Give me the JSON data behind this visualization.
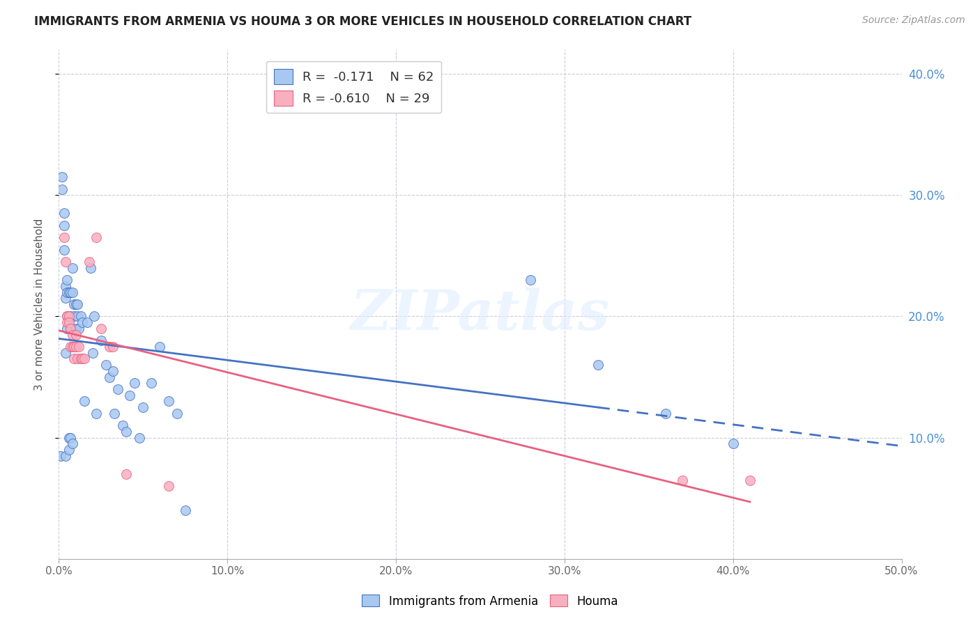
{
  "title": "IMMIGRANTS FROM ARMENIA VS HOUMA 3 OR MORE VEHICLES IN HOUSEHOLD CORRELATION CHART",
  "source": "Source: ZipAtlas.com",
  "ylabel": "3 or more Vehicles in Household",
  "xlim": [
    0.0,
    0.5
  ],
  "ylim": [
    0.0,
    0.42
  ],
  "xticks": [
    0.0,
    0.1,
    0.2,
    0.3,
    0.4,
    0.5
  ],
  "yticks_right": [
    0.1,
    0.2,
    0.3,
    0.4
  ],
  "ytick_labels_right": [
    "10.0%",
    "20.0%",
    "30.0%",
    "40.0%"
  ],
  "xtick_labels": [
    "0.0%",
    "10.0%",
    "20.0%",
    "30.0%",
    "40.0%",
    "50.0%"
  ],
  "armenia_color": "#a8c8f0",
  "houma_color": "#f8b0c0",
  "trendline_armenia_color": "#4472c4",
  "trendline_houma_color": "#e86080",
  "watermark_text": "ZIPatlas",
  "background_color": "#ffffff",
  "grid_color": "#ccccdd",
  "armenia_x": [
    0.001,
    0.002,
    0.002,
    0.003,
    0.003,
    0.003,
    0.004,
    0.004,
    0.004,
    0.004,
    0.005,
    0.005,
    0.005,
    0.005,
    0.006,
    0.006,
    0.006,
    0.006,
    0.006,
    0.007,
    0.007,
    0.007,
    0.007,
    0.008,
    0.008,
    0.008,
    0.009,
    0.009,
    0.01,
    0.01,
    0.011,
    0.011,
    0.012,
    0.013,
    0.014,
    0.015,
    0.017,
    0.019,
    0.02,
    0.021,
    0.022,
    0.025,
    0.028,
    0.03,
    0.032,
    0.033,
    0.035,
    0.038,
    0.04,
    0.042,
    0.045,
    0.048,
    0.05,
    0.055,
    0.06,
    0.065,
    0.07,
    0.075,
    0.28,
    0.32,
    0.36,
    0.4
  ],
  "armenia_y": [
    0.085,
    0.305,
    0.315,
    0.255,
    0.275,
    0.285,
    0.085,
    0.17,
    0.215,
    0.225,
    0.22,
    0.23,
    0.2,
    0.19,
    0.195,
    0.2,
    0.22,
    0.09,
    0.1,
    0.1,
    0.19,
    0.2,
    0.22,
    0.22,
    0.24,
    0.095,
    0.21,
    0.2,
    0.21,
    0.19,
    0.2,
    0.21,
    0.19,
    0.2,
    0.195,
    0.13,
    0.195,
    0.24,
    0.17,
    0.2,
    0.12,
    0.18,
    0.16,
    0.15,
    0.155,
    0.12,
    0.14,
    0.11,
    0.105,
    0.135,
    0.145,
    0.1,
    0.125,
    0.145,
    0.175,
    0.13,
    0.12,
    0.04,
    0.23,
    0.16,
    0.12,
    0.095
  ],
  "houma_x": [
    0.003,
    0.004,
    0.005,
    0.005,
    0.006,
    0.006,
    0.007,
    0.007,
    0.008,
    0.008,
    0.009,
    0.009,
    0.01,
    0.01,
    0.011,
    0.012,
    0.013,
    0.014,
    0.015,
    0.018,
    0.022,
    0.025,
    0.03,
    0.032,
    0.04,
    0.065,
    0.37,
    0.41
  ],
  "houma_y": [
    0.265,
    0.245,
    0.2,
    0.195,
    0.2,
    0.195,
    0.175,
    0.19,
    0.175,
    0.185,
    0.165,
    0.175,
    0.175,
    0.185,
    0.165,
    0.175,
    0.165,
    0.165,
    0.165,
    0.245,
    0.265,
    0.19,
    0.175,
    0.175,
    0.07,
    0.06,
    0.065,
    0.065
  ],
  "marker_size": 100,
  "trendline_end_armenia": 0.32,
  "trendline_end_houma": 0.41
}
